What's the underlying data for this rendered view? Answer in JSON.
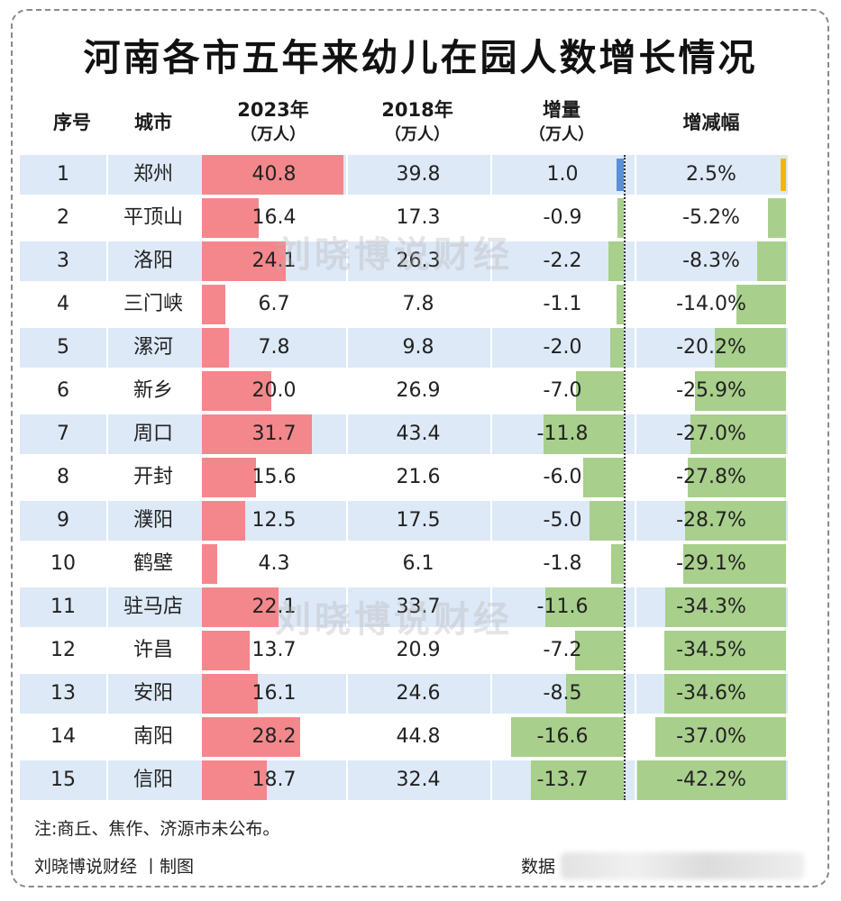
{
  "title": "河南各市五年来幼儿在园人数增长情况",
  "watermark": "刘晓博说财经",
  "headers": {
    "index": "序号",
    "city": "城市",
    "y2023": "2023年",
    "y2023_unit": "（万人）",
    "y2018": "2018年",
    "y2018_unit": "（万人）",
    "change": "增量",
    "change_unit": "（万人）",
    "pct": "增减幅"
  },
  "chart_data": {
    "type": "table",
    "columns": [
      "序号",
      "城市",
      "2023年（万人）",
      "2018年（万人）",
      "增量（万人）",
      "增减幅"
    ],
    "rows": [
      {
        "index": "1",
        "city": "郑州",
        "v2023": 40.8,
        "v2018": 39.8,
        "change": 1.0,
        "pct": 2.5,
        "v2023_label": "40.8",
        "v2018_label": "39.8",
        "change_label": "1.0",
        "pct_label": "2.5%"
      },
      {
        "index": "2",
        "city": "平顶山",
        "v2023": 16.4,
        "v2018": 17.3,
        "change": -0.9,
        "pct": -5.2,
        "v2023_label": "16.4",
        "v2018_label": "17.3",
        "change_label": "-0.9",
        "pct_label": "-5.2%"
      },
      {
        "index": "3",
        "city": "洛阳",
        "v2023": 24.1,
        "v2018": 26.3,
        "change": -2.2,
        "pct": -8.3,
        "v2023_label": "24.1",
        "v2018_label": "26.3",
        "change_label": "-2.2",
        "pct_label": "-8.3%"
      },
      {
        "index": "4",
        "city": "三门峡",
        "v2023": 6.7,
        "v2018": 7.8,
        "change": -1.1,
        "pct": -14.0,
        "v2023_label": "6.7",
        "v2018_label": "7.8",
        "change_label": "-1.1",
        "pct_label": "-14.0%"
      },
      {
        "index": "5",
        "city": "漯河",
        "v2023": 7.8,
        "v2018": 9.8,
        "change": -2.0,
        "pct": -20.2,
        "v2023_label": "7.8",
        "v2018_label": "9.8",
        "change_label": "-2.0",
        "pct_label": "-20.2%"
      },
      {
        "index": "6",
        "city": "新乡",
        "v2023": 20.0,
        "v2018": 26.9,
        "change": -7.0,
        "pct": -25.9,
        "v2023_label": "20.0",
        "v2018_label": "26.9",
        "change_label": "-7.0",
        "pct_label": "-25.9%"
      },
      {
        "index": "7",
        "city": "周口",
        "v2023": 31.7,
        "v2018": 43.4,
        "change": -11.8,
        "pct": -27.0,
        "v2023_label": "31.7",
        "v2018_label": "43.4",
        "change_label": "-11.8",
        "pct_label": "-27.0%"
      },
      {
        "index": "8",
        "city": "开封",
        "v2023": 15.6,
        "v2018": 21.6,
        "change": -6.0,
        "pct": -27.8,
        "v2023_label": "15.6",
        "v2018_label": "21.6",
        "change_label": "-6.0",
        "pct_label": "-27.8%"
      },
      {
        "index": "9",
        "city": "濮阳",
        "v2023": 12.5,
        "v2018": 17.5,
        "change": -5.0,
        "pct": -28.7,
        "v2023_label": "12.5",
        "v2018_label": "17.5",
        "change_label": "-5.0",
        "pct_label": "-28.7%"
      },
      {
        "index": "10",
        "city": "鹤壁",
        "v2023": 4.3,
        "v2018": 6.1,
        "change": -1.8,
        "pct": -29.1,
        "v2023_label": "4.3",
        "v2018_label": "6.1",
        "change_label": "-1.8",
        "pct_label": "-29.1%"
      },
      {
        "index": "11",
        "city": "驻马店",
        "v2023": 22.1,
        "v2018": 33.7,
        "change": -11.6,
        "pct": -34.3,
        "v2023_label": "22.1",
        "v2018_label": "33.7",
        "change_label": "-11.6",
        "pct_label": "-34.3%"
      },
      {
        "index": "12",
        "city": "许昌",
        "v2023": 13.7,
        "v2018": 20.9,
        "change": -7.2,
        "pct": -34.5,
        "v2023_label": "13.7",
        "v2018_label": "20.9",
        "change_label": "-7.2",
        "pct_label": "-34.5%"
      },
      {
        "index": "13",
        "city": "安阳",
        "v2023": 16.1,
        "v2018": 24.6,
        "change": -8.5,
        "pct": -34.6,
        "v2023_label": "16.1",
        "v2018_label": "24.6",
        "change_label": "-8.5",
        "pct_label": "-34.6%"
      },
      {
        "index": "14",
        "city": "南阳",
        "v2023": 28.2,
        "v2018": 44.8,
        "change": -16.6,
        "pct": -37.0,
        "v2023_label": "28.2",
        "v2018_label": "44.8",
        "change_label": "-16.6",
        "pct_label": "-37.0%"
      },
      {
        "index": "15",
        "city": "信阳",
        "v2023": 18.7,
        "v2018": 32.4,
        "change": -13.7,
        "pct": -42.2,
        "v2023_label": "18.7",
        "v2018_label": "32.4",
        "change_label": "-13.7",
        "pct_label": "-42.2%"
      }
    ],
    "colors": {
      "bar_2023": "#f3878c",
      "bar_negative": "#a8cf8b",
      "bar_change_positive": "#5b8fd6",
      "bar_pct_positive": "#f2b705",
      "row_stripe": "#dde9f7"
    }
  },
  "footer": {
    "note": "注:商丘、焦作、济源市未公布。",
    "credit": "刘晓博说财经 丨制图",
    "source_label": "数据"
  }
}
